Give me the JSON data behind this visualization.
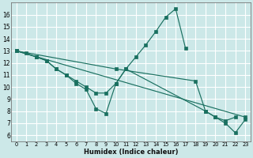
{
  "background_color": "#cce8e8",
  "grid_color": "#ffffff",
  "line_color": "#1a7060",
  "xlabel": "Humidex (Indice chaleur)",
  "xlim": [
    -0.5,
    23.5
  ],
  "ylim": [
    5.5,
    17.0
  ],
  "xtick_values": [
    0,
    1,
    2,
    3,
    4,
    5,
    6,
    7,
    8,
    9,
    10,
    11,
    12,
    13,
    14,
    15,
    16,
    17,
    18,
    19,
    20,
    21,
    22,
    23
  ],
  "ytick_values": [
    6,
    7,
    8,
    9,
    10,
    11,
    12,
    13,
    14,
    15,
    16
  ],
  "lines": [
    {
      "x": [
        0,
        1,
        2,
        3,
        4,
        5,
        6,
        7,
        8,
        9,
        10,
        11,
        12,
        13,
        14,
        15,
        16,
        17
      ],
      "y": [
        13,
        12.8,
        12.5,
        12.2,
        11.5,
        11.0,
        10.5,
        10.0,
        9.5,
        9.5,
        10.3,
        11.5,
        12.5,
        13.5,
        14.6,
        15.8,
        16.5,
        13.2
      ]
    },
    {
      "x": [
        0,
        10,
        18,
        19,
        20,
        21,
        22,
        23
      ],
      "y": [
        13,
        11.5,
        10.5,
        8.0,
        7.5,
        7.0,
        6.2,
        7.3
      ]
    },
    {
      "x": [
        0,
        2,
        3,
        4,
        5,
        6,
        7,
        8,
        9,
        10,
        11,
        19,
        20,
        21,
        22
      ],
      "y": [
        13,
        12.5,
        12.2,
        11.5,
        11.0,
        10.3,
        9.8,
        8.2,
        7.8,
        10.3,
        11.5,
        8.0,
        7.5,
        7.2,
        7.5
      ]
    },
    {
      "x": [
        0,
        23
      ],
      "y": [
        13,
        7.5
      ]
    }
  ]
}
